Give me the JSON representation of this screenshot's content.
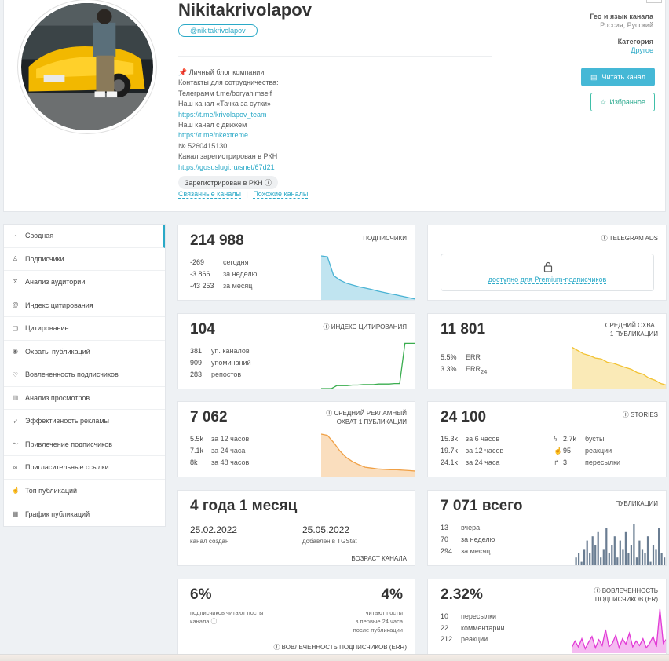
{
  "channel": {
    "title": "Nikitakrivolapov",
    "handle": "@nikitakrivolapov",
    "description": [
      "Личный блог компании",
      "Контакты для сотрудничества:",
      "Телеграмм t.me/boryahimself",
      "Наш канал «Тачка за сутки»",
      "https://t.me/krivolapov_team",
      "Наш канал с движем",
      "https://t.me/nkextreme",
      "№ 5260415130",
      "Канал зарегистрирован в РКН",
      "https://gosuslugi.ru/snet/67d21"
    ],
    "rkn_badge": "Зарегистрирован в РКН",
    "related_channels": "Связанные каналы",
    "related_sep": "|",
    "similar_channels": "Похожие каналы",
    "geo_label": "Гео и язык канала",
    "geo_value": "Россия, Русский",
    "category_label": "Категория",
    "category_value": "Другое",
    "read_button": "Читать канал",
    "fav_button": "Избранное"
  },
  "sidebar": {
    "items": [
      {
        "label": "Сводная",
        "icon": "gauge-icon",
        "glyph": "◔"
      },
      {
        "label": "Подписчики",
        "icon": "users-icon",
        "glyph": "♙"
      },
      {
        "label": "Анализ аудитории",
        "icon": "hourglass-icon",
        "glyph": "⧖"
      },
      {
        "label": "Индекс цитирования",
        "icon": "at-icon",
        "glyph": "@"
      },
      {
        "label": "Цитирование",
        "icon": "quote-icon",
        "glyph": "❏"
      },
      {
        "label": "Охваты публикаций",
        "icon": "eye-icon",
        "glyph": "◉"
      },
      {
        "label": "Вовлеченность подписчиков",
        "icon": "heart-icon",
        "glyph": "♡"
      },
      {
        "label": "Анализ просмотров",
        "icon": "bar-chart-icon",
        "glyph": "▥"
      },
      {
        "label": "Эффективность рекламы",
        "icon": "rocket-icon",
        "glyph": "➶"
      },
      {
        "label": "Привлечение подписчиков",
        "icon": "trend-icon",
        "glyph": "〜"
      },
      {
        "label": "Пригласительные ссылки",
        "icon": "link-icon",
        "glyph": "∞"
      },
      {
        "label": "Топ публикаций",
        "icon": "thumb-icon",
        "glyph": "☝"
      },
      {
        "label": "График публикаций",
        "icon": "calendar-icon",
        "glyph": "▦"
      }
    ]
  },
  "subscribers": {
    "value": "214 988",
    "label": "ПОДПИСЧИКИ",
    "rows": [
      {
        "num": "-269",
        "text": "сегодня"
      },
      {
        "num": "-3 866",
        "text": "за неделю"
      },
      {
        "num": "-43 253",
        "text": "за месяц"
      }
    ],
    "color": "#4ab3d4"
  },
  "telegram_ads": {
    "label": "TELEGRAM ADS",
    "premium_text": "доступно для Premium-подписчиков"
  },
  "citation": {
    "value": "104",
    "label": "ИНДЕКС ЦИТИРОВАНИЯ",
    "rows": [
      {
        "num": "381",
        "text": "уп. каналов"
      },
      {
        "num": "909",
        "text": "упоминаний"
      },
      {
        "num": "283",
        "text": "репостов"
      }
    ],
    "color": "#3aad4f"
  },
  "reach": {
    "value": "11 801",
    "label_line1": "СРЕДНИЙ ОХВАТ",
    "label_line2": "1 ПУБЛИКАЦИИ",
    "rows": [
      {
        "num": "5.5%",
        "text": "ERR"
      },
      {
        "num": "3.3%",
        "text": "ERR",
        "sub": "24"
      }
    ],
    "color": "#f2c232"
  },
  "ad_reach": {
    "value": "7 062",
    "label_line1": "СРЕДНИЙ РЕКЛАМНЫЙ",
    "label_line2": "ОХВАТ 1 ПУБЛИКАЦИИ",
    "rows": [
      {
        "num": "5.5k",
        "text": "за 12 часов"
      },
      {
        "num": "7.1k",
        "text": "за 24 часа"
      },
      {
        "num": "8k",
        "text": "за 48 часов"
      }
    ],
    "color": "#f0a045"
  },
  "stories": {
    "value": "24 100",
    "label": "STORIES",
    "rows": [
      {
        "num": "15.3k",
        "text": "за 6 часов"
      },
      {
        "num": "19.7k",
        "text": "за 12 часов"
      },
      {
        "num": "24.1k",
        "text": "за 24 часа"
      }
    ],
    "rows_right": [
      {
        "num": "2.7k",
        "text": "бусты",
        "icon": "boost-icon",
        "glyph": "ϟ"
      },
      {
        "num": "95",
        "text": "реакции",
        "icon": "thumb-up-icon",
        "glyph": "☝"
      },
      {
        "num": "3",
        "text": "пересылки",
        "icon": "share-icon",
        "glyph": "↱"
      }
    ]
  },
  "age": {
    "value": "4 года 1 месяц",
    "created_date": "25.02.2022",
    "created_label": "канал создан",
    "added_date": "25.05.2022",
    "added_label": "добавлен в TGStat",
    "footer": "ВОЗРАСТ КАНАЛА"
  },
  "publications": {
    "value": "7 071 всего",
    "label": "ПУБЛИКАЦИИ",
    "rows": [
      {
        "num": "13",
        "text": "вчера"
      },
      {
        "num": "70",
        "text": "за неделю"
      },
      {
        "num": "294",
        "text": "за месяц"
      }
    ],
    "bars": [
      2,
      3,
      1,
      4,
      6,
      3,
      7,
      5,
      8,
      2,
      4,
      9,
      3,
      5,
      7,
      2,
      6,
      4,
      8,
      3,
      5,
      10,
      2,
      6,
      4,
      3,
      7,
      1,
      5,
      4,
      9,
      3,
      2
    ],
    "color": "#6a7d92"
  },
  "engagement_pct": {
    "left_value": "6%",
    "left_text_1": "подписчиков читают посты",
    "left_text_2": "канала",
    "right_value": "4%",
    "right_text_1": "читают посты",
    "right_text_2": "в первые 24 часа",
    "right_text_3": "после публикации",
    "footer": "ВОВЛЕЧЕННОСТЬ ПОДПИСЧИКОВ (ERR)"
  },
  "er": {
    "value": "2.32%",
    "label_line1": "ВОВЛЕЧЕННОСТЬ",
    "label_line2": "ПОДПИСЧИКОВ (ER)",
    "rows": [
      {
        "num": "10",
        "text": "пересылки"
      },
      {
        "num": "22",
        "text": "комментарии"
      },
      {
        "num": "212",
        "text": "реакции"
      }
    ],
    "color": "#e23bd6"
  }
}
